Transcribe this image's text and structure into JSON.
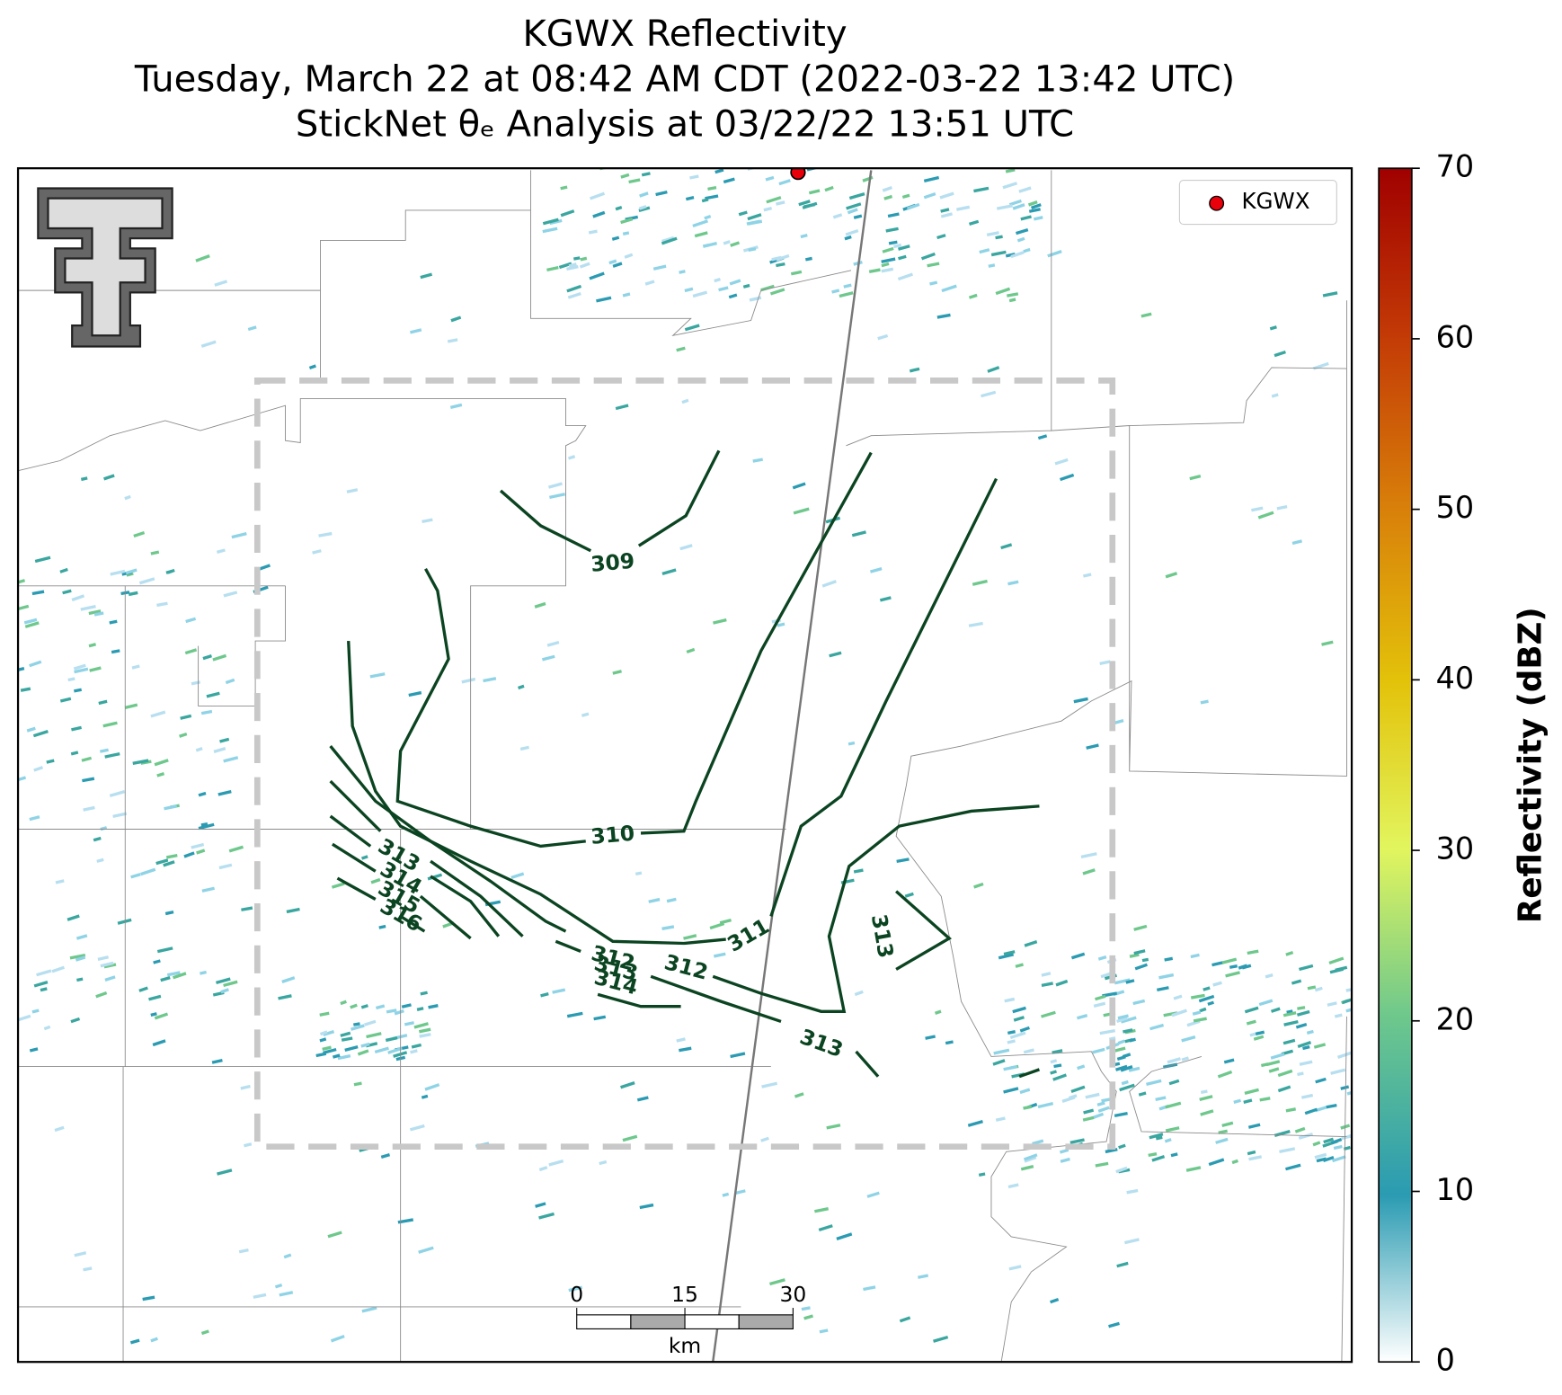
{
  "title_lines": [
    "KGWX Reflectivity",
    "Tuesday, March 22 at 08:42 AM CDT (2022-03-22 13:42 UTC)",
    "StickNet θₑ Analysis at 03/22/22 13:51 UTC"
  ],
  "legend": {
    "label": "KGWX",
    "color": "#e8000b"
  },
  "colorbar": {
    "label": "Reflectivity (dBZ)",
    "lim": [
      0,
      70
    ],
    "ticks": [
      0,
      10,
      20,
      30,
      40,
      50,
      60,
      70
    ]
  },
  "scale_bar": {
    "unit": "km",
    "lim": [
      0,
      30
    ],
    "ticks": [
      0,
      15,
      30
    ]
  },
  "contours": [
    {
      "level": 309
    },
    {
      "level": 310
    },
    {
      "level": 311
    },
    {
      "level": 312
    },
    {
      "level": 313
    },
    {
      "level": 314
    },
    {
      "level": 315
    },
    {
      "level": 316
    }
  ],
  "contour_color": "#0b4421"
}
